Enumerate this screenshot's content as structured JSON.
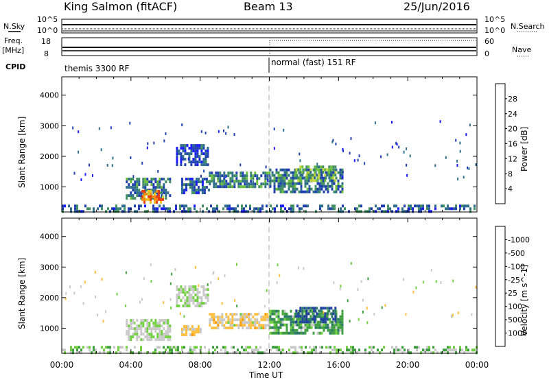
{
  "header": {
    "station": "King Salmon (fitACF)",
    "beam": "Beam 13",
    "date": "25/Jun/2016"
  },
  "strip_labels": {
    "nsky": "N.Sky",
    "nsearch": "N.Search",
    "freq": "Freq.",
    "freq_unit": "[MHz]",
    "nave": "Nave",
    "cpid": "CPID",
    "nsky_ticks": [
      "10^5",
      "10^0"
    ],
    "nsearch_ticks": [
      "10^5",
      "10^0"
    ],
    "freq_ticks": [
      "18",
      "8"
    ],
    "nave_ticks": [
      "60",
      "0"
    ],
    "cpid_segments": [
      {
        "label": "themis 3300 RF",
        "start_hour": 0
      },
      {
        "label": "normal (fast) 151 RF",
        "start_hour": 12
      }
    ]
  },
  "colors": {
    "power_scale": [
      "#1a1aff",
      "#1f3fb0",
      "#2e6e8c",
      "#3f8f5f",
      "#6cbf3a",
      "#c8d63c",
      "#f0c020",
      "#f08a10",
      "#e84010",
      "#cc0000"
    ],
    "velocity_scale": [
      "#ff0000",
      "#ff6a00",
      "#ff9a00",
      "#ffbf40",
      "#c9c9c9",
      "#c9c9c9",
      "#70d040",
      "#3fa040",
      "#2d7a6a",
      "#2040a0",
      "#1030d0"
    ]
  },
  "chart_data": [
    {
      "type": "heatmap",
      "name": "power-panel",
      "xlabel": "Time UT",
      "ylabel": "Slant Range [km]",
      "colorbar_label": "Power [dB]",
      "colorbar_ticks": [
        "4",
        "8",
        "12",
        "16",
        "20",
        "24",
        "28"
      ],
      "xlim": [
        0,
        24
      ],
      "ylim": [
        180,
        4600
      ],
      "yticks": [
        1000,
        2000,
        3000,
        4000
      ],
      "xticks": [
        "00:00",
        "04:00",
        "08:00",
        "12:00",
        "16:00",
        "20:00",
        "00:00"
      ],
      "regions": [
        {
          "t0": 3.7,
          "t1": 6.2,
          "r0": 600,
          "r1": 1300,
          "value": 10
        },
        {
          "t0": 4.6,
          "t1": 5.8,
          "r0": 500,
          "r1": 900,
          "value": 24
        },
        {
          "t0": 6.6,
          "t1": 8.4,
          "r0": 1700,
          "r1": 2400,
          "value": 7
        },
        {
          "t0": 6.9,
          "t1": 8.5,
          "r0": 800,
          "r1": 1300,
          "value": 8
        },
        {
          "t0": 8.5,
          "t1": 12.0,
          "r0": 1000,
          "r1": 1500,
          "value": 11
        },
        {
          "t0": 12.0,
          "t1": 16.2,
          "r0": 800,
          "r1": 1600,
          "value": 10
        },
        {
          "t0": 13.5,
          "t1": 15.8,
          "r0": 1200,
          "r1": 1700,
          "value": 14
        },
        {
          "t0": 0.0,
          "t1": 24.0,
          "r0": 180,
          "r1": 420,
          "value": 9
        }
      ]
    },
    {
      "type": "heatmap",
      "name": "velocity-panel",
      "xlabel": "Time UT",
      "ylabel": "Slant Range [km]",
      "colorbar_label": "Velocity [m s^-1]",
      "colorbar_ticks": [
        "1000",
        "500",
        "100",
        "25",
        "-25",
        "-100",
        "-500",
        "-1000"
      ],
      "xlim": [
        0,
        24
      ],
      "ylim": [
        180,
        4600
      ],
      "yticks": [
        1000,
        2000,
        3000,
        4000
      ],
      "xticks": [
        "00:00",
        "04:00",
        "08:00",
        "12:00",
        "16:00",
        "20:00",
        "00:00"
      ],
      "regions": [
        {
          "t0": 3.7,
          "t1": 6.2,
          "r0": 600,
          "r1": 1300,
          "value": 0
        },
        {
          "t0": 6.6,
          "t1": 8.4,
          "r0": 1700,
          "r1": 2400,
          "value": 0
        },
        {
          "t0": 6.9,
          "t1": 8.0,
          "r0": 800,
          "r1": 1100,
          "value": -150
        },
        {
          "t0": 8.5,
          "t1": 12.0,
          "r0": 1000,
          "r1": 1500,
          "value": -120
        },
        {
          "t0": 12.0,
          "t1": 16.2,
          "r0": 800,
          "r1": 1600,
          "value": 150
        },
        {
          "t0": 13.5,
          "t1": 15.8,
          "r0": 1200,
          "r1": 1700,
          "value": 600
        },
        {
          "t0": 0.0,
          "t1": 24.0,
          "r0": 180,
          "r1": 420,
          "value": 60
        }
      ]
    }
  ]
}
